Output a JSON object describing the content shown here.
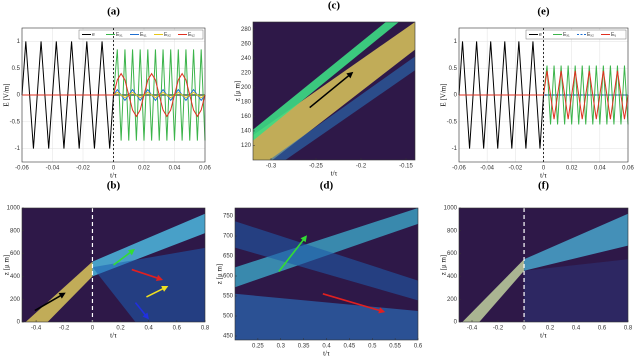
{
  "chart_data": [
    {
      "type": "line",
      "title": "(a)",
      "xlabel": "t/τ",
      "ylabel": "E [V/m]",
      "grid": true,
      "legend": "top-right",
      "xlim": [
        -0.06,
        0.06
      ],
      "xticks": [
        -0.06,
        -0.04,
        -0.02,
        0,
        0.02,
        0.04,
        0.06
      ],
      "ylim": [
        -1.25,
        1.25
      ],
      "yticks": [
        -1,
        -0.5,
        0,
        0.5,
        1
      ],
      "x": [
        -0.06,
        -0.0575,
        -0.055,
        -0.0525,
        -0.05,
        -0.0475,
        -0.045,
        -0.0425,
        -0.04,
        -0.0375,
        -0.035,
        -0.0325,
        -0.03,
        -0.0275,
        -0.025,
        -0.0225,
        -0.02,
        -0.0175,
        -0.015,
        -0.0125,
        -0.01,
        -0.0075,
        -0.005,
        -0.0025,
        0,
        0.0025,
        0.005,
        0.0075,
        0.01,
        0.0125,
        0.015,
        0.0175,
        0.02,
        0.0225,
        0.025,
        0.0275,
        0.03,
        0.0325,
        0.035,
        0.0375,
        0.04,
        0.0425,
        0.045,
        0.0475,
        0.05,
        0.0525,
        0.055,
        0.0575,
        0.06
      ],
      "series": [
        {
          "name": "e",
          "color": "#000000",
          "values": [
            0,
            1,
            0,
            -1,
            0,
            1,
            0,
            -1,
            0,
            1,
            0,
            -1,
            0,
            1,
            0,
            -1,
            0,
            1,
            0,
            -1,
            0,
            1,
            0,
            -1,
            0,
            0,
            0,
            0,
            0,
            0,
            0,
            0,
            0,
            0,
            0,
            0,
            0,
            0,
            0,
            0,
            0,
            0,
            0,
            0,
            0,
            0,
            0,
            0,
            0
          ]
        },
        {
          "name": "Eₓ₁",
          "color": "#3cb44b",
          "values": [
            0,
            0,
            0,
            0,
            0,
            0,
            0,
            0,
            0,
            0,
            0,
            0,
            0,
            0,
            0,
            0,
            0,
            0,
            0,
            0,
            0,
            0,
            0,
            0,
            0,
            0.85,
            -0.85,
            0.85,
            -0.85,
            0.85,
            -0.85,
            0.85,
            -0.85,
            0.85,
            -0.85,
            0.85,
            -0.85,
            0.85,
            -0.85,
            0.85,
            -0.85,
            0.85,
            -0.85,
            0.85,
            -0.85,
            0.85,
            -0.85,
            0.85,
            -0.85
          ]
        },
        {
          "name": "Eᵧ₁",
          "color": "#1f6fd0",
          "values": [
            0,
            0,
            0,
            0,
            0,
            0,
            0,
            0,
            0,
            0,
            0,
            0,
            0,
            0,
            0,
            0,
            0,
            0,
            0,
            0,
            0,
            0,
            0,
            0,
            0,
            0.1,
            0,
            -0.1,
            0,
            0.1,
            0,
            -0.1,
            0,
            0.1,
            0,
            -0.1,
            0,
            0.1,
            0,
            -0.1,
            0,
            0.1,
            0,
            -0.1,
            0,
            0.1,
            0,
            -0.1,
            0
          ]
        },
        {
          "name": "Eₓ₂",
          "color": "#e6c619",
          "values": [
            0,
            0,
            0,
            0,
            0,
            0,
            0,
            0,
            0,
            0,
            0,
            0,
            0,
            0,
            0,
            0,
            0,
            0,
            0,
            0,
            0,
            0,
            0,
            0,
            0,
            0.05,
            0,
            -0.05,
            0,
            0.05,
            0,
            -0.05,
            0,
            0.05,
            0,
            -0.05,
            0,
            0.05,
            0,
            -0.05,
            0,
            0.05,
            0,
            -0.05,
            0,
            0.05,
            0,
            -0.05,
            0
          ]
        },
        {
          "name": "Eᵧ₂",
          "color": "#e03020",
          "values": [
            0,
            0,
            0,
            0,
            0,
            0,
            0,
            0,
            0,
            0,
            0,
            0,
            0,
            0,
            0,
            0,
            0,
            0,
            0,
            0,
            0,
            0,
            0,
            0,
            0,
            0.28,
            0.4,
            0.28,
            0,
            -0.28,
            -0.4,
            -0.28,
            0,
            0.28,
            0.4,
            0.28,
            0,
            -0.28,
            -0.4,
            -0.28,
            0,
            0.28,
            0.4,
            0.28,
            0,
            -0.28,
            -0.4,
            -0.28,
            0
          ]
        }
      ]
    },
    {
      "type": "heatmap",
      "title": "(c)",
      "xlabel": "t/τ",
      "ylabel": "z [μ m]",
      "xlim": [
        -0.32,
        -0.14
      ],
      "xticks": [
        -0.3,
        -0.25,
        -0.2,
        -0.15
      ],
      "ylim": [
        100,
        290
      ],
      "yticks": [
        120,
        140,
        160,
        180,
        200,
        220,
        240,
        260,
        280
      ]
    },
    {
      "type": "line",
      "title": "(e)",
      "xlabel": "t/τ",
      "ylabel": "E [V/m]",
      "grid": true,
      "legend": "top-right",
      "xlim": [
        -0.06,
        0.06
      ],
      "xticks": [
        -0.06,
        -0.04,
        -0.02,
        0,
        0.02,
        0.04,
        0.06
      ],
      "ylim": [
        -1.25,
        1.25
      ],
      "yticks": [
        -1,
        -0.5,
        0,
        0.5,
        1
      ],
      "x": [
        -0.06,
        -0.0575,
        -0.055,
        -0.0525,
        -0.05,
        -0.0475,
        -0.045,
        -0.0425,
        -0.04,
        -0.0375,
        -0.035,
        -0.0325,
        -0.03,
        -0.0275,
        -0.025,
        -0.0225,
        -0.02,
        -0.0175,
        -0.015,
        -0.0125,
        -0.01,
        -0.0075,
        -0.005,
        -0.0025,
        0,
        0.0025,
        0.005,
        0.0075,
        0.01,
        0.0125,
        0.015,
        0.0175,
        0.02,
        0.0225,
        0.025,
        0.0275,
        0.03,
        0.0325,
        0.035,
        0.0375,
        0.04,
        0.0425,
        0.045,
        0.0475,
        0.05,
        0.0525,
        0.055,
        0.0575,
        0.06
      ],
      "series": [
        {
          "name": "e",
          "color": "#000000",
          "values": [
            0,
            1,
            0,
            -1,
            0,
            1,
            0,
            -1,
            0,
            1,
            0,
            -1,
            0,
            1,
            0,
            -1,
            0,
            1,
            0,
            -1,
            0,
            1,
            0,
            -1,
            0,
            0,
            0,
            0,
            0,
            0,
            0,
            0,
            0,
            0,
            0,
            0,
            0,
            0,
            0,
            0,
            0,
            0,
            0,
            0,
            0,
            0,
            0,
            0,
            0
          ]
        },
        {
          "name": "Eₓ₁",
          "color": "#3cb44b",
          "values": [
            0,
            0,
            0,
            0,
            0,
            0,
            0,
            0,
            0,
            0,
            0,
            0,
            0,
            0,
            0,
            0,
            0,
            0,
            0,
            0,
            0,
            0,
            0,
            0,
            0,
            0.55,
            -0.55,
            0.55,
            -0.55,
            0.55,
            -0.55,
            0.55,
            -0.55,
            0.55,
            -0.55,
            0.55,
            -0.55,
            0.55,
            -0.55,
            0.55,
            -0.55,
            0.55,
            -0.55,
            0.55,
            -0.55,
            0.55,
            -0.55,
            0.55,
            -0.55
          ]
        },
        {
          "name": "Eₓ₂",
          "color": "#1f6fd0",
          "dash": true,
          "values": [
            0,
            0,
            0,
            0,
            0,
            0,
            0,
            0,
            0,
            0,
            0,
            0,
            0,
            0,
            0,
            0,
            0,
            0,
            0,
            0,
            0,
            0,
            0,
            0,
            0,
            0,
            0,
            0,
            0,
            0,
            0,
            0,
            0,
            0,
            0,
            0,
            0,
            0,
            0,
            0,
            0,
            0,
            0,
            0,
            0,
            0,
            0,
            0,
            0
          ]
        },
        {
          "name": "Eᵧ",
          "color": "#e03020",
          "values": [
            0,
            0,
            0,
            0,
            0,
            0,
            0,
            0,
            0,
            0,
            0,
            0,
            0,
            0,
            0,
            0,
            0,
            0,
            0,
            0,
            0,
            0,
            0,
            0,
            0,
            0.45,
            0,
            -0.45,
            0,
            0.45,
            0,
            -0.45,
            0,
            0.45,
            0,
            -0.45,
            0,
            0.45,
            0,
            -0.45,
            0,
            0.45,
            0,
            -0.45,
            0,
            0.45,
            0,
            -0.45,
            0
          ]
        }
      ]
    },
    {
      "type": "heatmap",
      "title": "(b)",
      "xlabel": "t/τ",
      "ylabel": "z [μ m]",
      "xlim": [
        -0.5,
        0.8
      ],
      "xticks": [
        -0.4,
        -0.2,
        0,
        0.2,
        0.4,
        0.6,
        0.8
      ],
      "ylim": [
        0,
        1000
      ],
      "yticks": [
        0,
        200,
        400,
        600,
        800,
        1000
      ]
    },
    {
      "type": "heatmap",
      "title": "(d)",
      "xlabel": "t/τ",
      "ylabel": "z [μ m]",
      "xlim": [
        0.2,
        0.6
      ],
      "xticks": [
        0.25,
        0.3,
        0.35,
        0.4,
        0.45,
        0.5,
        0.55,
        0.6
      ],
      "ylim": [
        440,
        770
      ],
      "yticks": [
        450,
        500,
        550,
        600,
        650,
        700,
        750
      ]
    },
    {
      "type": "heatmap",
      "title": "(f)",
      "xlabel": "t/τ",
      "ylabel": "z [μ m]",
      "xlim": [
        -0.5,
        0.8
      ],
      "xticks": [
        -0.4,
        -0.2,
        0,
        0.2,
        0.4,
        0.6,
        0.8
      ],
      "ylim": [
        0,
        1000
      ],
      "yticks": [
        0,
        200,
        400,
        600,
        800,
        1000
      ]
    }
  ]
}
